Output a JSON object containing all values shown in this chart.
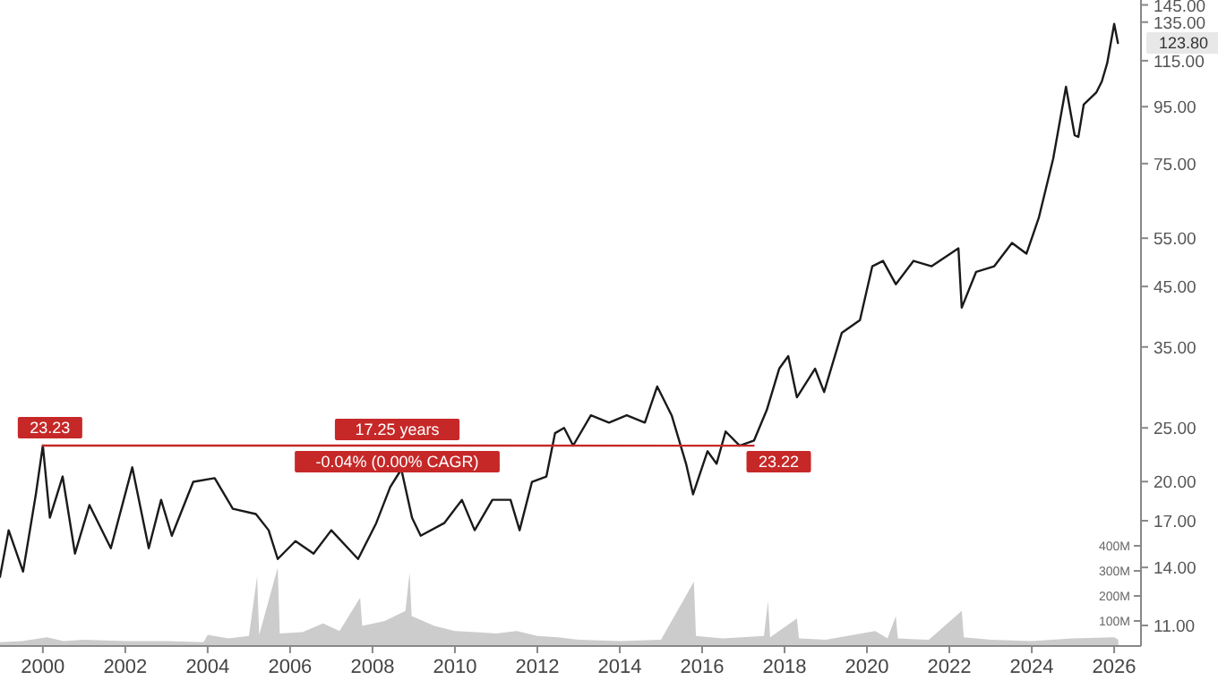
{
  "chart_data": {
    "type": "line",
    "log": "y",
    "grid": false,
    "xlim": [
      1998.96,
      2026.65
    ],
    "xticks": [
      2000,
      2002,
      2004,
      2006,
      2008,
      2010,
      2012,
      2014,
      2016,
      2018,
      2020,
      2022,
      2024,
      2026
    ],
    "ylim": [
      10.1,
      148
    ],
    "yticks": [
      {
        "value": 11,
        "label": "11.00"
      },
      {
        "value": 14,
        "label": "14.00"
      },
      {
        "value": 17,
        "label": "17.00"
      },
      {
        "value": 20,
        "label": "20.00"
      },
      {
        "value": 25,
        "label": "25.00"
      },
      {
        "value": 35,
        "label": "35.00"
      },
      {
        "value": 45,
        "label": "45.00"
      },
      {
        "value": 55,
        "label": "55.00"
      },
      {
        "value": 75,
        "label": "75.00"
      },
      {
        "value": 95,
        "label": "95.00"
      },
      {
        "value": 115,
        "label": "115.00"
      },
      {
        "value": 135,
        "label": "135.00"
      },
      {
        "value": 145,
        "label": "145.00"
      }
    ],
    "y2lim": [
      0,
      2580
    ],
    "y2ticks": [
      {
        "value": 100,
        "label": "100M"
      },
      {
        "value": 200,
        "label": "200M"
      },
      {
        "value": 300,
        "label": "300M"
      },
      {
        "value": 400,
        "label": "400M"
      }
    ],
    "series": [
      {
        "type": "area",
        "axis": "y2",
        "color": "#cccccc",
        "x": [
          1998.96,
          1999.5,
          2000.1,
          2000.5,
          2001,
          2002,
          2003,
          2003.9,
          2004,
          2004.5,
          2005.0,
          2005.2,
          2005.25,
          2005.7,
          2005.75,
          2006.3,
          2006.8,
          2007.2,
          2007.7,
          2007.75,
          2008.3,
          2008.8,
          2008.9,
          2008.95,
          2009.5,
          2010.0,
          2010.5,
          2011.0,
          2011.5,
          2012.0,
          2012.5,
          2013,
          2014,
          2015,
          2015.8,
          2015.85,
          2016.5,
          2017.5,
          2017.6,
          2017.65,
          2018.3,
          2018.35,
          2019,
          2020.2,
          2020.5,
          2020.7,
          2020.75,
          2021.5,
          2022.3,
          2022.35,
          2023,
          2024,
          2025,
          2026,
          2026.1
        ],
        "values": [
          15,
          20,
          35,
          20,
          25,
          20,
          20,
          15,
          45,
          30,
          40,
          278,
          45,
          314,
          50,
          55,
          90,
          60,
          193,
          80,
          100,
          140,
          293,
          120,
          80,
          60,
          55,
          50,
          60,
          40,
          35,
          25,
          20,
          25,
          257,
          40,
          30,
          40,
          180,
          35,
          110,
          30,
          25,
          60,
          30,
          120,
          30,
          25,
          140,
          35,
          25,
          20,
          30,
          35,
          25
        ]
      },
      {
        "color": "#1a1a1a",
        "x": [
          1998.96,
          1999.17,
          1999.52,
          1999.83,
          2000.0,
          2000.17,
          2000.48,
          2000.78,
          2001.13,
          2001.65,
          2002.17,
          2002.57,
          2002.87,
          2003.13,
          2003.65,
          2004.17,
          2004.61,
          2005.17,
          2005.48,
          2005.7,
          2006.13,
          2006.57,
          2007.0,
          2007.65,
          2008.09,
          2008.43,
          2008.7,
          2008.96,
          2009.17,
          2009.74,
          2010.17,
          2010.48,
          2010.91,
          2011.35,
          2011.57,
          2011.87,
          2012.22,
          2012.43,
          2012.65,
          2012.87,
          2013.3,
          2013.74,
          2014.17,
          2014.61,
          2014.91,
          2015.26,
          2015.61,
          2015.78,
          2016.13,
          2016.35,
          2016.57,
          2016.91,
          2017.26,
          2017.57,
          2017.87,
          2018.09,
          2018.3,
          2018.74,
          2018.96,
          2019.39,
          2019.83,
          2020.13,
          2020.39,
          2020.7,
          2021.13,
          2021.57,
          2022.22,
          2022.3,
          2022.65,
          2023.09,
          2023.52,
          2023.87,
          2024.17,
          2024.52,
          2024.83,
          2025.04,
          2025.13,
          2025.26,
          2025.57,
          2025.7,
          2025.83,
          2026.0,
          2026.09
        ],
        "values": [
          13.46,
          16.34,
          13.76,
          18.97,
          23.23,
          17.21,
          20.43,
          14.83,
          18.14,
          15.16,
          21.22,
          15.16,
          18.54,
          15.97,
          19.98,
          20.29,
          17.87,
          17.48,
          16.34,
          14.5,
          15.62,
          14.83,
          16.34,
          14.5,
          16.83,
          19.55,
          21.05,
          17.21,
          15.97,
          16.83,
          18.54,
          16.34,
          18.54,
          18.54,
          16.34,
          19.98,
          20.43,
          24.46,
          25.0,
          23.23,
          26.34,
          25.56,
          26.34,
          25.56,
          29.7,
          26.34,
          21.54,
          18.97,
          22.69,
          21.54,
          24.63,
          23.22,
          23.73,
          26.95,
          31.98,
          33.69,
          28.39,
          31.98,
          29.02,
          37.12,
          39.14,
          48.95,
          50.05,
          45.42,
          50.05,
          48.95,
          52.72,
          41.21,
          47.83,
          48.95,
          53.94,
          51.56,
          59.85,
          76.56,
          103.2,
          84.4,
          83.8,
          95.8,
          100.9,
          105.5,
          113.8,
          134.0,
          123.8
        ]
      },
      {
        "type": "line",
        "color": "#c62828",
        "x": [
          2000.0,
          2017.25
        ],
        "values": [
          23.23,
          23.22
        ]
      }
    ],
    "annotations": [
      {
        "text": "23.23",
        "x": 2000.0,
        "y": 23.23
      },
      {
        "text": "17.25 years",
        "x": 2008.6,
        "y": 23.23
      },
      {
        "text": "-0.04% (0.00% CAGR)",
        "x": 2008.6,
        "y": 23.23
      },
      {
        "text": "23.22",
        "x": 2017.25,
        "y": 23.22
      },
      {
        "text": "123.80",
        "x": 2026.09,
        "y": 123.8
      }
    ]
  }
}
